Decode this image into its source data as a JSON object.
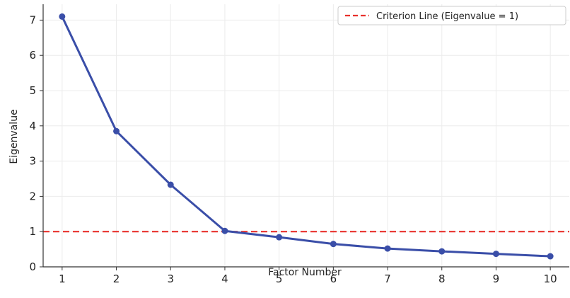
{
  "chart_data": {
    "type": "line",
    "title": "",
    "xlabel": "Factor Number",
    "ylabel": "Eigenvalue",
    "x": [
      1,
      2,
      3,
      4,
      5,
      6,
      7,
      8,
      9,
      10
    ],
    "xlim": [
      0.65,
      10.35
    ],
    "ylim": [
      0,
      7.45
    ],
    "xticks": [
      1,
      2,
      3,
      4,
      5,
      6,
      7,
      8,
      9,
      10
    ],
    "yticks": [
      0,
      1,
      2,
      3,
      4,
      5,
      6,
      7
    ],
    "grid": true,
    "legend_position": "top-right",
    "series": [
      {
        "name": "",
        "values": [
          7.1,
          3.85,
          2.33,
          1.02,
          0.84,
          0.65,
          0.52,
          0.44,
          0.37,
          0.3
        ],
        "color": "#3a4ea8",
        "marker": "circle"
      }
    ],
    "reference_lines": [
      {
        "name": "Criterion Line (Eigenvalue = 1)",
        "y": 1,
        "color": "#e8312c",
        "style": "dashed"
      }
    ]
  }
}
